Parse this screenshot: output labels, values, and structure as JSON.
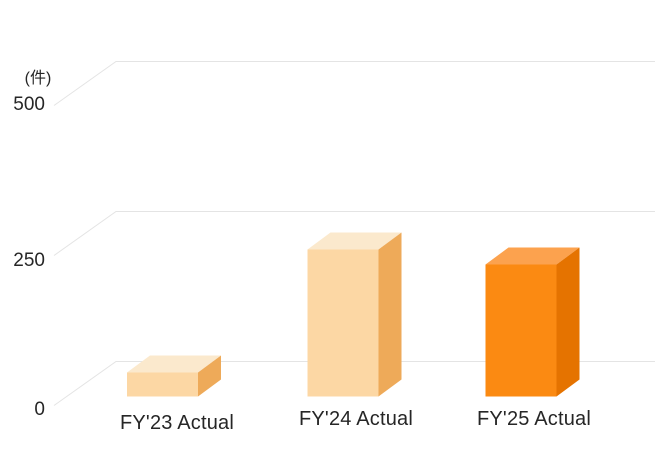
{
  "chart_data": {
    "type": "bar",
    "style": "3d",
    "title": "",
    "unit_label": "(件)",
    "categories": [
      "FY'23 Actual",
      "FY'24 Actual",
      "FY'25 Actual"
    ],
    "values": [
      40,
      245,
      220
    ],
    "xlabel": "",
    "ylabel": "(件)",
    "ylim": [
      0,
      500
    ],
    "y_ticks": [
      0,
      250,
      500
    ],
    "y_tick_labels": [
      "0",
      "250",
      "500"
    ],
    "grid": "back-wall horizontal lines with depth connectors",
    "legend": "none",
    "colors": {
      "bar_front": [
        "#FCD7A4",
        "#FCD7A4",
        "#FB8A12"
      ],
      "bar_top": [
        "#FBE9CD",
        "#FBE9CD",
        "#FCA24E"
      ],
      "bar_side": [
        "#EEAA59",
        "#EEAA59",
        "#E57300"
      ],
      "gridline": "#E4E4E4",
      "text": "#262626",
      "background": "#FFFFFF"
    }
  }
}
